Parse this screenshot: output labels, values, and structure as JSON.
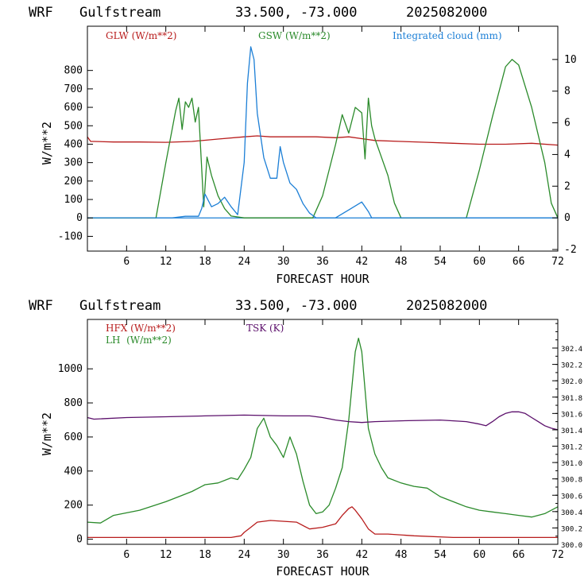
{
  "chart_data": [
    {
      "type": "line",
      "title": {
        "model": "WRF",
        "location": "Gulfstream",
        "coords": "33.500, -73.000",
        "date": "2025082000"
      },
      "xlabel": "FORECAST HOUR",
      "ylabel": "W/m**2",
      "xlim": [
        0,
        72
      ],
      "xticks": [
        6,
        12,
        18,
        24,
        30,
        36,
        42,
        48,
        54,
        60,
        66,
        72
      ],
      "ylim": [
        -180,
        1040
      ],
      "yticks": [
        -100,
        0,
        100,
        200,
        300,
        400,
        500,
        600,
        700,
        800
      ],
      "y2lim": [
        -2.1,
        12.1
      ],
      "y2ticks": [
        -2,
        0,
        2,
        4,
        6,
        8,
        10
      ],
      "legend": [
        "GLW (W/m**2)",
        "GSW (W/m**2)",
        "Integrated cloud (mm)"
      ],
      "colors": {
        "GLW": "#b81c1c",
        "GSW": "#2a8a2a",
        "cloud": "#1c7fd6",
        "zero": "#1c7fd6"
      },
      "series": [
        {
          "name": "GLW (W/m**2)",
          "axis": "left",
          "x": [
            0,
            0.5,
            1,
            4,
            8,
            12,
            16,
            20,
            24,
            26,
            28,
            32,
            35,
            38,
            40,
            42,
            44,
            48,
            52,
            56,
            60,
            64,
            68,
            72
          ],
          "y": [
            440,
            415,
            415,
            412,
            412,
            410,
            415,
            428,
            440,
            445,
            440,
            440,
            440,
            435,
            440,
            430,
            420,
            415,
            410,
            405,
            400,
            400,
            405,
            395
          ]
        },
        {
          "name": "GSW (W/m**2)",
          "axis": "left",
          "x": [
            0,
            10.5,
            12,
            13.5,
            14,
            14.5,
            15,
            15.5,
            16,
            16.5,
            17,
            17.3,
            17.8,
            18.3,
            19,
            20,
            21,
            22,
            24,
            30,
            34.5,
            36,
            38,
            39,
            40,
            41,
            42,
            42.5,
            43,
            43.5,
            44,
            45,
            46,
            47,
            48,
            58,
            60,
            62,
            64,
            65,
            66,
            68,
            70,
            71,
            72
          ],
          "y": [
            0,
            0,
            300,
            580,
            650,
            480,
            630,
            600,
            650,
            520,
            600,
            400,
            60,
            330,
            230,
            120,
            50,
            10,
            0,
            0,
            0,
            120,
            400,
            560,
            460,
            600,
            570,
            320,
            650,
            500,
            430,
            330,
            230,
            80,
            0,
            0,
            260,
            550,
            820,
            860,
            830,
            600,
            300,
            80,
            0
          ]
        },
        {
          "name": "Integrated cloud (mm)",
          "axis": "right",
          "x": [
            0,
            13,
            15,
            17,
            17.5,
            18,
            19,
            20,
            21,
            22,
            23,
            24,
            24.5,
            25,
            25.5,
            26,
            27,
            28,
            29,
            29.5,
            30,
            31,
            32,
            33,
            34,
            35,
            36,
            38,
            40,
            42,
            43,
            43.5,
            44,
            72
          ],
          "y": [
            0,
            0,
            0.1,
            0.1,
            0.6,
            1.5,
            0.7,
            0.9,
            1.3,
            0.7,
            0.2,
            3.5,
            8.5,
            10.8,
            10,
            6.6,
            3.8,
            2.5,
            2.5,
            4.5,
            3.5,
            2.2,
            1.8,
            0.9,
            0.3,
            0,
            0,
            0,
            0.5,
            1.0,
            0.4,
            0,
            0,
            0
          ]
        }
      ]
    },
    {
      "type": "line",
      "title": {
        "model": "WRF",
        "location": "Gulfstream",
        "coords": "33.500, -73.000",
        "date": "2025082000"
      },
      "xlabel": "FORECAST HOUR",
      "ylabel": "W/m**2",
      "xlim": [
        0,
        72
      ],
      "xticks": [
        6,
        12,
        18,
        24,
        30,
        36,
        42,
        48,
        54,
        60,
        66,
        72
      ],
      "ylim": [
        -30,
        1290
      ],
      "yticks": [
        0,
        200,
        400,
        600,
        800,
        1000
      ],
      "y2lim": [
        300.0,
        302.75
      ],
      "y2ticks": [
        300.0,
        300.2,
        300.4,
        300.6,
        300.8,
        301.0,
        301.2,
        301.4,
        301.6,
        301.8,
        302.0,
        302.2,
        302.4
      ],
      "y2ticklabels": [
        "300.0",
        "300.2",
        "300.4",
        "300.6",
        "300.8",
        "301.0",
        "301.2",
        "301.4",
        "301.6",
        "301.8",
        "302.0",
        "302.2",
        "302.4"
      ],
      "legend": [
        "HFX (W/m**2)",
        "LH  (W/m**2)",
        "TSK (K)"
      ],
      "colors": {
        "HFX": "#b81c1c",
        "LH": "#2a8a2a",
        "TSK": "#5b0f6b"
      },
      "series": [
        {
          "name": "HFX (W/m**2)",
          "axis": "left",
          "x": [
            0,
            10,
            22,
            23.5,
            24,
            25,
            26,
            28,
            32,
            34,
            36,
            38,
            39,
            40,
            40.5,
            41,
            42,
            43,
            44,
            46,
            50,
            56,
            60,
            66,
            72
          ],
          "y": [
            10,
            10,
            10,
            20,
            40,
            70,
            100,
            110,
            100,
            60,
            70,
            90,
            140,
            180,
            190,
            170,
            120,
            60,
            30,
            30,
            20,
            10,
            10,
            10,
            10
          ]
        },
        {
          "name": "LH  (W/m**2)",
          "axis": "left",
          "x": [
            0,
            2,
            4,
            8,
            12,
            14,
            16,
            18,
            20,
            22,
            23,
            24,
            25,
            26,
            27,
            28,
            29,
            30,
            31,
            32,
            33,
            34,
            35,
            36,
            37,
            38,
            39,
            40,
            41,
            41.5,
            42,
            43,
            44,
            45,
            46,
            48,
            50,
            52,
            54,
            56,
            58,
            60,
            62,
            64,
            66,
            68,
            70,
            72
          ],
          "y": [
            100,
            95,
            140,
            170,
            220,
            250,
            280,
            320,
            330,
            360,
            350,
            410,
            480,
            650,
            710,
            600,
            550,
            480,
            600,
            500,
            340,
            200,
            150,
            160,
            200,
            300,
            420,
            700,
            1100,
            1180,
            1100,
            650,
            500,
            420,
            360,
            330,
            310,
            300,
            250,
            220,
            190,
            170,
            160,
            150,
            140,
            130,
            150,
            190
          ]
        },
        {
          "name": "TSK (K)",
          "axis": "right",
          "x": [
            0,
            1,
            6,
            12,
            18,
            24,
            30,
            34,
            36,
            38,
            40,
            42,
            44,
            48,
            54,
            58,
            60,
            61,
            62,
            63,
            64,
            65,
            66,
            67,
            68,
            69,
            70,
            71,
            72
          ],
          "y": [
            301.55,
            301.53,
            301.55,
            301.56,
            301.57,
            301.58,
            301.57,
            301.57,
            301.55,
            301.52,
            301.5,
            301.49,
            301.5,
            301.51,
            301.52,
            301.5,
            301.47,
            301.45,
            301.5,
            301.56,
            301.6,
            301.62,
            301.62,
            301.6,
            301.55,
            301.5,
            301.45,
            301.42,
            301.4
          ]
        }
      ]
    }
  ]
}
